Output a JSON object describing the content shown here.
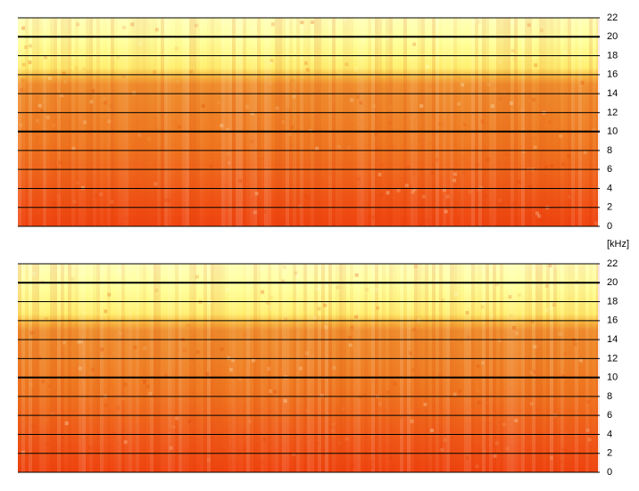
{
  "chart_data": [
    {
      "type": "spectrogram",
      "ylim": [
        0,
        22
      ],
      "yticks": [
        0,
        2,
        4,
        6,
        8,
        10,
        12,
        14,
        16,
        18,
        20,
        22
      ],
      "major_gridlines": [
        10,
        20
      ],
      "grid": true,
      "ylabel": "[kHz]"
    },
    {
      "type": "spectrogram",
      "ylim": [
        0,
        22
      ],
      "yticks": [
        0,
        2,
        4,
        6,
        8,
        10,
        12,
        14,
        16,
        18,
        20,
        22
      ],
      "major_gridlines": [
        10,
        20
      ],
      "grid": true
    }
  ]
}
